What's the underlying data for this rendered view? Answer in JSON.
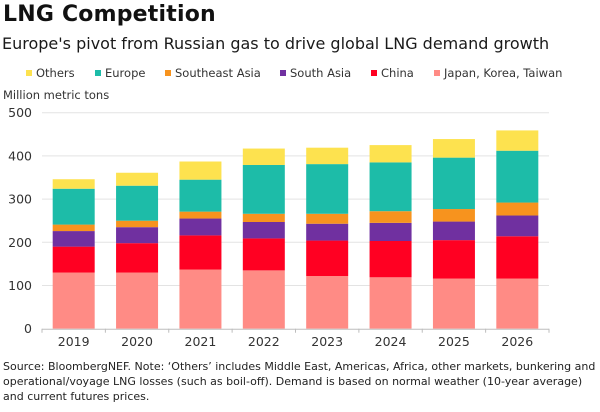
{
  "header": {
    "title": "LNG Competition",
    "subtitle": "Europe's pivot from Russian gas to drive global LNG demand growth"
  },
  "footnote": "Source: BloombergNEF. Note: ‘Others’ includes Middle East, Americas, Africa, other markets, bunkering and operational/voyage LNG losses (such as boil-off). Demand is based on normal weather (10-year average) and current futures prices.",
  "chart_data": {
    "type": "bar",
    "stacked": true,
    "title": "LNG Competition",
    "subtitle": "Europe's pivot from Russian gas to drive global LNG demand growth",
    "xlabel": "",
    "ylabel": "Million metric tons",
    "ylim": [
      0,
      500
    ],
    "yticks": [
      0,
      100,
      200,
      300,
      400,
      500
    ],
    "grid": true,
    "legend_position": "top",
    "categories": [
      "2019",
      "2020",
      "2021",
      "2022",
      "2023",
      "2024",
      "2025",
      "2026"
    ],
    "legend_order": [
      "Others",
      "Europe",
      "Southeast Asia",
      "South Asia",
      "China",
      "Japan, Korea, Taiwan"
    ],
    "series": [
      {
        "name": "Japan, Korea, Taiwan",
        "color": "#FF8B85",
        "values": [
          130,
          130,
          137,
          135,
          122,
          119,
          116,
          116
        ]
      },
      {
        "name": "China",
        "color": "#FF0022",
        "values": [
          60,
          68,
          79,
          74,
          82,
          84,
          89,
          98
        ]
      },
      {
        "name": "South Asia",
        "color": "#7030A0",
        "values": [
          36,
          37,
          39,
          38,
          39,
          42,
          43,
          48
        ]
      },
      {
        "name": "Southeast Asia",
        "color": "#F7931E",
        "values": [
          15,
          15,
          16,
          19,
          23,
          27,
          29,
          30
        ]
      },
      {
        "name": "Europe",
        "color": "#1DBCA8",
        "values": [
          83,
          81,
          74,
          113,
          115,
          113,
          119,
          120
        ]
      },
      {
        "name": "Others",
        "color": "#FDE24F",
        "values": [
          22,
          30,
          42,
          38,
          38,
          40,
          43,
          47
        ]
      }
    ]
  }
}
